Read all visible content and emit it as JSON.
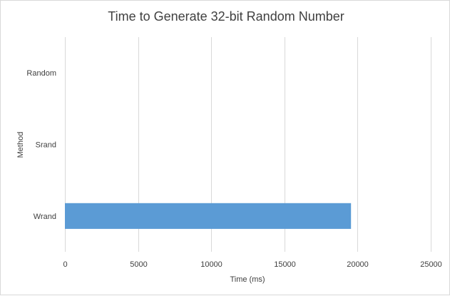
{
  "chart_data": {
    "type": "bar",
    "orientation": "horizontal",
    "title": "Time to Generate 32-bit Random Number",
    "xlabel": "Time (ms)",
    "ylabel": "Method",
    "categories": [
      "Random",
      "Srand",
      "Wrand"
    ],
    "values": [
      0,
      0,
      19550
    ],
    "xlim": [
      0,
      25000
    ],
    "xticks": [
      "0",
      "5000",
      "10000",
      "15000",
      "20000",
      "25000"
    ],
    "grid": "vertical",
    "legend": "none",
    "bar_color": "#5b9bd5",
    "gridline_color": "#d9d9d9",
    "text_color": "#404040"
  }
}
